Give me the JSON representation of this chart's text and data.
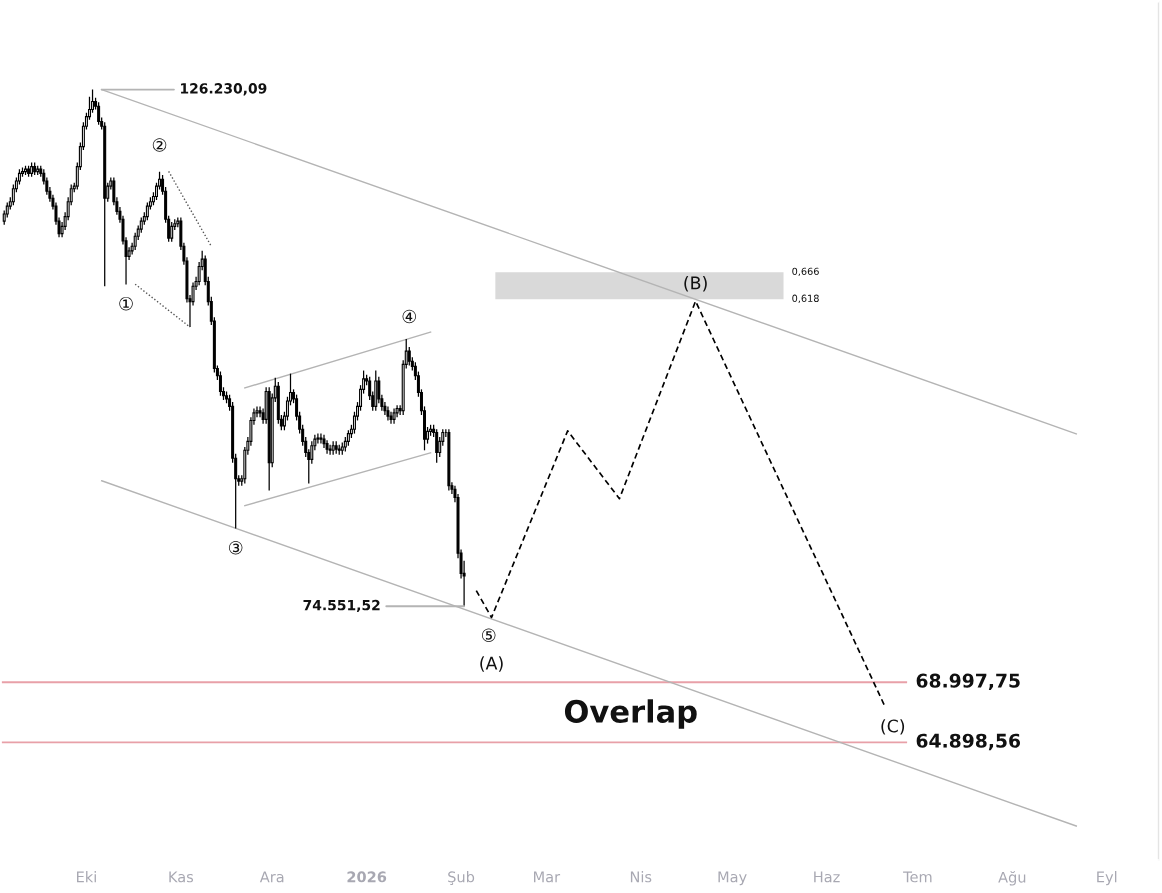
{
  "chart_data": {
    "type": "candlestick",
    "x": [
      "2025-09-04",
      "2025-09-05",
      "2025-09-06",
      "2025-09-07",
      "2025-09-08",
      "2025-09-09",
      "2025-09-10",
      "2025-09-11",
      "2025-09-12",
      "2025-09-13",
      "2025-09-14",
      "2025-09-15",
      "2025-09-16",
      "2025-09-17",
      "2025-09-18",
      "2025-09-19",
      "2025-09-20",
      "2025-09-21",
      "2025-09-22",
      "2025-09-23",
      "2025-09-24",
      "2025-09-25",
      "2025-09-26",
      "2025-09-27",
      "2025-09-28",
      "2025-09-29",
      "2025-09-30",
      "2025-10-01",
      "2025-10-02",
      "2025-10-03",
      "2025-10-04",
      "2025-10-05",
      "2025-10-06",
      "2025-10-07",
      "2025-10-08",
      "2025-10-09",
      "2025-10-10",
      "2025-10-11",
      "2025-10-12",
      "2025-10-13",
      "2025-10-14",
      "2025-10-15",
      "2025-10-16",
      "2025-10-17",
      "2025-10-18",
      "2025-10-19",
      "2025-10-20",
      "2025-10-21",
      "2025-10-22",
      "2025-10-23",
      "2025-10-24",
      "2025-10-25",
      "2025-10-26",
      "2025-10-27",
      "2025-10-28",
      "2025-10-29",
      "2025-10-30",
      "2025-10-31",
      "2025-11-01",
      "2025-11-02",
      "2025-11-03",
      "2025-11-04",
      "2025-11-05",
      "2025-11-06",
      "2025-11-07",
      "2025-11-08",
      "2025-11-09",
      "2025-11-10",
      "2025-11-11",
      "2025-11-12",
      "2025-11-13",
      "2025-11-14",
      "2025-11-15",
      "2025-11-16",
      "2025-11-17",
      "2025-11-18",
      "2025-11-19",
      "2025-11-20",
      "2025-11-21",
      "2025-11-22",
      "2025-11-23",
      "2025-11-24",
      "2025-11-25",
      "2025-11-26",
      "2025-11-27",
      "2025-11-28",
      "2025-11-29",
      "2025-11-30",
      "2025-12-01",
      "2025-12-02",
      "2025-12-03",
      "2025-12-04",
      "2025-12-05",
      "2025-12-06",
      "2025-12-07",
      "2025-12-08",
      "2025-12-09",
      "2025-12-10",
      "2025-12-11",
      "2025-12-12",
      "2025-12-13",
      "2025-12-14",
      "2025-12-15",
      "2025-12-16",
      "2025-12-17",
      "2025-12-18",
      "2025-12-19",
      "2025-12-20",
      "2025-12-21",
      "2025-12-22",
      "2025-12-23",
      "2025-12-24",
      "2025-12-25",
      "2025-12-26",
      "2025-12-27",
      "2025-12-28",
      "2025-12-29",
      "2025-12-30",
      "2025-12-31",
      "2026-01-01",
      "2026-01-02",
      "2026-01-03",
      "2026-01-04",
      "2026-01-05",
      "2026-01-06",
      "2026-01-07",
      "2026-01-08",
      "2026-01-09",
      "2026-01-10",
      "2026-01-11",
      "2026-01-12",
      "2026-01-13",
      "2026-01-14",
      "2026-01-15",
      "2026-01-16",
      "2026-01-17",
      "2026-01-18",
      "2026-01-19",
      "2026-01-20",
      "2026-01-21",
      "2026-01-22",
      "2026-01-23",
      "2026-01-24",
      "2026-01-25",
      "2026-01-26",
      "2026-01-27",
      "2026-01-28",
      "2026-01-29",
      "2026-01-30",
      "2026-01-31",
      "2026-02-01",
      "2026-02-02"
    ],
    "ohlc": [
      [
        110400,
        111600,
        110000,
        111200
      ],
      [
        111200,
        112500,
        110800,
        112100
      ],
      [
        112100,
        113100,
        111700,
        112600
      ],
      [
        112600,
        114600,
        112200,
        114100
      ],
      [
        114100,
        115400,
        113700,
        115000
      ],
      [
        115000,
        116400,
        114600,
        115900
      ],
      [
        115900,
        116600,
        115500,
        116100
      ],
      [
        116100,
        116800,
        115700,
        116400
      ],
      [
        116400,
        116800,
        115500,
        115900
      ],
      [
        115900,
        117200,
        115500,
        116700
      ],
      [
        116700,
        117200,
        115700,
        116100
      ],
      [
        116100,
        116800,
        115700,
        116400
      ],
      [
        116400,
        116800,
        115500,
        115900
      ],
      [
        115900,
        116400,
        114600,
        115000
      ],
      [
        115000,
        115400,
        113400,
        113800
      ],
      [
        113800,
        114300,
        112600,
        113000
      ],
      [
        113000,
        113400,
        111700,
        112100
      ],
      [
        112100,
        112500,
        110000,
        110400
      ],
      [
        110400,
        110800,
        108600,
        109000
      ],
      [
        109000,
        110300,
        108600,
        109800
      ],
      [
        109800,
        111400,
        109400,
        110900
      ],
      [
        110900,
        113100,
        110500,
        112600
      ],
      [
        112600,
        114600,
        112200,
        114100
      ],
      [
        114100,
        114800,
        113700,
        114400
      ],
      [
        114400,
        117200,
        114000,
        116700
      ],
      [
        116700,
        119600,
        116300,
        119100
      ],
      [
        119100,
        122100,
        118700,
        121600
      ],
      [
        121600,
        123300,
        121200,
        122800
      ],
      [
        122800,
        125300,
        122400,
        123700
      ],
      [
        123700,
        126230.09,
        123300,
        124700
      ],
      [
        124700,
        125200,
        123700,
        124100
      ],
      [
        124100,
        124600,
        121800,
        122200
      ],
      [
        122200,
        122700,
        121200,
        121600
      ],
      [
        121600,
        122100,
        103300,
        113000
      ],
      [
        113000,
        114800,
        112600,
        114400
      ],
      [
        114400,
        115400,
        114000,
        115000
      ],
      [
        115000,
        115400,
        112200,
        112600
      ],
      [
        112600,
        113100,
        111100,
        111500
      ],
      [
        111500,
        112000,
        110200,
        110600
      ],
      [
        110600,
        111000,
        107800,
        108200
      ],
      [
        108200,
        108600,
        103500,
        106500
      ],
      [
        106500,
        107500,
        106100,
        107100
      ],
      [
        107100,
        108000,
        106700,
        107600
      ],
      [
        107600,
        109100,
        107200,
        108700
      ],
      [
        108700,
        109900,
        108300,
        109500
      ],
      [
        109500,
        110800,
        109100,
        110400
      ],
      [
        110400,
        111400,
        110000,
        110900
      ],
      [
        110900,
        112500,
        110500,
        112100
      ],
      [
        112100,
        113100,
        111700,
        112600
      ],
      [
        112600,
        113700,
        112200,
        113200
      ],
      [
        113200,
        114800,
        112800,
        114400
      ],
      [
        114400,
        116100,
        114000,
        115200
      ],
      [
        115200,
        115700,
        113400,
        113800
      ],
      [
        113800,
        114300,
        110200,
        110600
      ],
      [
        110600,
        111000,
        108100,
        108500
      ],
      [
        108500,
        110300,
        108100,
        109800
      ],
      [
        109800,
        110600,
        109400,
        110100
      ],
      [
        110100,
        110800,
        109700,
        110400
      ],
      [
        110400,
        110800,
        107200,
        107600
      ],
      [
        107600,
        108000,
        105600,
        106000
      ],
      [
        106000,
        106400,
        101600,
        102000
      ],
      [
        102000,
        102400,
        99100,
        101700
      ],
      [
        101700,
        103700,
        101300,
        103300
      ],
      [
        103300,
        104300,
        102900,
        103800
      ],
      [
        103800,
        105900,
        103400,
        105400
      ],
      [
        105400,
        107100,
        105000,
        106200
      ],
      [
        106200,
        106600,
        103400,
        103800
      ],
      [
        103800,
        104300,
        101300,
        101700
      ],
      [
        101700,
        102200,
        99300,
        99700
      ],
      [
        99700,
        100100,
        94600,
        95000
      ],
      [
        95000,
        95300,
        93900,
        94300
      ],
      [
        94300,
        94700,
        92400,
        92800
      ],
      [
        92800,
        93200,
        92000,
        92400
      ],
      [
        92400,
        92800,
        91700,
        92100
      ],
      [
        92100,
        92500,
        91000,
        91400
      ],
      [
        91400,
        91800,
        86300,
        86700
      ],
      [
        86700,
        87100,
        80700,
        84900
      ],
      [
        84900,
        85200,
        84300,
        84700
      ],
      [
        84700,
        85200,
        84300,
        84900
      ],
      [
        84900,
        87700,
        84500,
        87400
      ],
      [
        87400,
        88600,
        87000,
        88200
      ],
      [
        88200,
        90400,
        87800,
        90100
      ],
      [
        90100,
        91200,
        89700,
        90800
      ],
      [
        90800,
        91400,
        90400,
        91000
      ],
      [
        91000,
        91400,
        90400,
        90800
      ],
      [
        90800,
        91200,
        89800,
        90200
      ],
      [
        90200,
        93200,
        89800,
        92800
      ],
      [
        92800,
        93200,
        83900,
        86300
      ],
      [
        86300,
        92600,
        85900,
        92200
      ],
      [
        92200,
        94100,
        91800,
        93300
      ],
      [
        93300,
        93700,
        89800,
        90200
      ],
      [
        90200,
        90600,
        89200,
        89600
      ],
      [
        89600,
        90900,
        89200,
        90500
      ],
      [
        90500,
        92300,
        90100,
        91900
      ],
      [
        91900,
        94500,
        91500,
        92700
      ],
      [
        92700,
        93000,
        91700,
        92100
      ],
      [
        92100,
        92500,
        90100,
        90500
      ],
      [
        90500,
        90900,
        88900,
        89300
      ],
      [
        89300,
        89700,
        87800,
        88200
      ],
      [
        88200,
        88600,
        86800,
        87200
      ],
      [
        87200,
        87500,
        84500,
        86600
      ],
      [
        86600,
        88200,
        86200,
        87800
      ],
      [
        87800,
        88800,
        87400,
        88400
      ],
      [
        88400,
        88900,
        88000,
        88500
      ],
      [
        88500,
        88900,
        88000,
        88400
      ],
      [
        88400,
        88800,
        87600,
        88000
      ],
      [
        88000,
        88300,
        87100,
        87500
      ],
      [
        87500,
        87900,
        87000,
        87400
      ],
      [
        87400,
        88200,
        87000,
        87800
      ],
      [
        87800,
        88200,
        87100,
        87500
      ],
      [
        87500,
        87900,
        87000,
        87400
      ],
      [
        87400,
        88100,
        87000,
        87700
      ],
      [
        87700,
        88600,
        87300,
        88200
      ],
      [
        88200,
        89200,
        87800,
        88900
      ],
      [
        88900,
        89700,
        88500,
        89300
      ],
      [
        89300,
        90900,
        88900,
        90500
      ],
      [
        90500,
        91800,
        90100,
        91400
      ],
      [
        91400,
        93400,
        91000,
        93000
      ],
      [
        93000,
        94800,
        92600,
        94000
      ],
      [
        94000,
        94400,
        93400,
        93800
      ],
      [
        93800,
        94200,
        92000,
        92400
      ],
      [
        92400,
        92800,
        91000,
        91400
      ],
      [
        91400,
        94800,
        91000,
        93800
      ],
      [
        93800,
        94200,
        91700,
        92100
      ],
      [
        92100,
        92500,
        91000,
        91400
      ],
      [
        91400,
        91800,
        90600,
        91000
      ],
      [
        91000,
        91400,
        90100,
        90500
      ],
      [
        90500,
        90900,
        89800,
        90200
      ],
      [
        90200,
        91200,
        89800,
        90800
      ],
      [
        90800,
        91500,
        90400,
        91200
      ],
      [
        91200,
        91500,
        90600,
        91000
      ],
      [
        91000,
        95800,
        90600,
        95400
      ],
      [
        95400,
        97900,
        95000,
        96700
      ],
      [
        96700,
        97100,
        95300,
        95700
      ],
      [
        95700,
        96100,
        94800,
        95200
      ],
      [
        95200,
        95600,
        93900,
        94300
      ],
      [
        94300,
        94700,
        92300,
        92700
      ],
      [
        92700,
        93000,
        90600,
        91000
      ],
      [
        91000,
        91400,
        87400,
        88400
      ],
      [
        88400,
        89500,
        88000,
        89100
      ],
      [
        89100,
        89700,
        88700,
        89300
      ],
      [
        89300,
        89700,
        88600,
        89000
      ],
      [
        89000,
        89300,
        86300,
        87200
      ],
      [
        87200,
        88600,
        86800,
        88200
      ],
      [
        88200,
        89300,
        87800,
        89000
      ],
      [
        89000,
        89300,
        88600,
        89000
      ],
      [
        89000,
        89300,
        83900,
        84300
      ],
      [
        84300,
        84600,
        83600,
        84000
      ],
      [
        84000,
        84300,
        82900,
        83300
      ],
      [
        83300,
        83600,
        78300,
        78700
      ],
      [
        78700,
        79000,
        76700,
        77100
      ],
      [
        77100,
        78100,
        74551.52,
        76900
      ]
    ],
    "color": "#000000",
    "series": [
      {
        "type": "line",
        "x": [
          "2025-10-06",
          "2026-08-22"
        ],
        "values": [
          126230.09,
          88876
        ],
        "color": "#b4b4b4",
        "line_style": "solid"
      },
      {
        "type": "line",
        "x": [
          "2025-10-06",
          "2026-08-22"
        ],
        "values": [
          84728,
          59594
        ],
        "color": "#b4b4b4",
        "line_style": "solid"
      },
      {
        "type": "line",
        "x": [
          "2025-10-17",
          "2025-11-04"
        ],
        "values": [
          103523,
          99093
        ],
        "color": "#555555",
        "line_style": "dotted"
      },
      {
        "type": "line",
        "x": [
          "2025-10-28",
          "2025-11-11"
        ],
        "values": [
          116130,
          107602
        ],
        "color": "#555555",
        "line_style": "dotted"
      },
      {
        "type": "line",
        "x": [
          "2025-11-22",
          "2026-01-22"
        ],
        "values": [
          93133,
          98591
        ],
        "color": "#b4b4b4",
        "line_style": "solid"
      },
      {
        "type": "line",
        "x": [
          "2025-11-22",
          "2026-01-22"
        ],
        "values": [
          82601,
          87175
        ],
        "color": "#b4b4b4",
        "line_style": "solid"
      },
      {
        "type": "line",
        "x": [
          "2026-02-06",
          "2026-02-11",
          "2026-03-08",
          "2026-03-25",
          "2026-04-19",
          "2026-06-20"
        ],
        "values": [
          75760,
          73708,
          89148,
          83191,
          101748,
          67398
        ],
        "color": "#000000",
        "line_style": "dashed"
      }
    ],
    "ref_lines": [
      {
        "axis": "y",
        "value": 68997.75,
        "label": "68.997,75",
        "color": "#e8a0a8"
      },
      {
        "axis": "y",
        "value": 64898.56,
        "label": "64.898,56",
        "color": "#e8a0a8"
      }
    ],
    "bands": [
      {
        "axis": "y",
        "from": 101955,
        "to": 104794,
        "label": null,
        "color": "#d9d9d9"
      }
    ],
    "annotations": [
      {
        "text": "126.230,09",
        "x": "2025-10-06",
        "y": 126230.09
      },
      {
        "text": "74.551,52",
        "x": "2026-02-02",
        "y": 74551.52
      },
      "0,666",
      "0,618",
      {
        "text": "①",
        "x": "2025-10-14",
        "y": 103500
      },
      {
        "text": "②",
        "x": "2025-10-25",
        "y": 116100
      },
      {
        "text": "③",
        "x": "2025-11-19",
        "y": 80700
      },
      {
        "text": "④",
        "x": "2026-01-15",
        "y": 97900
      },
      {
        "text": "⑤",
        "x": "2026-02-11",
        "y": 73708
      },
      {
        "text": "(A)",
        "x": "2026-02-11",
        "y": 73708
      },
      {
        "text": "(B)",
        "x": "2026-04-19",
        "y": 101748
      },
      {
        "text": "(C)",
        "x": "2026-06-20",
        "y": 67398
      },
      "Overlap"
    ],
    "xticks": [
      {
        "value": "2025-10-01",
        "label": "Eki"
      },
      {
        "value": "2025-11-01",
        "label": "Kas"
      },
      {
        "value": "2025-12-01",
        "label": "Ara"
      },
      {
        "value": "2026-01-01",
        "label": "2026"
      },
      {
        "value": "2026-02-01",
        "label": "Şub"
      },
      {
        "value": "2026-03-01",
        "label": "Mar"
      },
      {
        "value": "2026-04-01",
        "label": "Nis"
      },
      {
        "value": "2026-05-01",
        "label": "May"
      },
      {
        "value": "2026-06-01",
        "label": "Haz"
      },
      {
        "value": "2026-07-01",
        "label": "Tem"
      },
      {
        "value": "2026-08-01",
        "label": "Ağu"
      },
      {
        "value": "2026-09-01",
        "label": "Eyl"
      }
    ],
    "xlim": [
      "2025-09-03",
      "2026-09-18"
    ],
    "ylim": [
      57569,
      138048
    ],
    "log": true,
    "tick_labels": "x",
    "grid": false,
    "legend": false
  }
}
